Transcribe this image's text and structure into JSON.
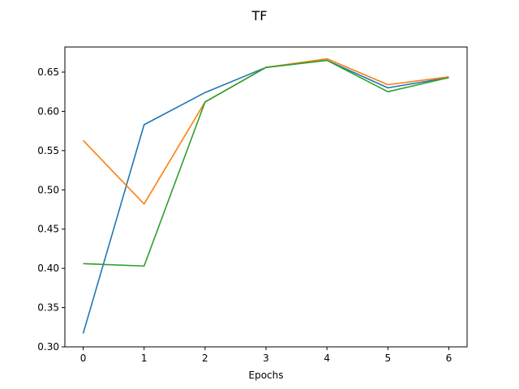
{
  "chart_data": {
    "type": "line",
    "title": "TF",
    "xlabel": "Epochs",
    "ylabel": "",
    "x": [
      0,
      1,
      2,
      3,
      4,
      5,
      6
    ],
    "xlim": [
      -0.3,
      6.3
    ],
    "ylim": [
      0.3,
      0.682
    ],
    "xticks": [
      "0",
      "1",
      "2",
      "3",
      "4",
      "5",
      "6"
    ],
    "yticks": [
      "0.30",
      "0.35",
      "0.40",
      "0.45",
      "0.50",
      "0.55",
      "0.60",
      "0.65"
    ],
    "grid": false,
    "legend": "none",
    "series": [
      {
        "color": "#1f77b4",
        "values": [
          0.317,
          0.583,
          0.624,
          0.656,
          0.665,
          0.63,
          0.643
        ]
      },
      {
        "color": "#ff7f0e",
        "values": [
          0.563,
          0.482,
          0.612,
          0.656,
          0.667,
          0.634,
          0.644
        ]
      },
      {
        "color": "#2ca02c",
        "values": [
          0.406,
          0.403,
          0.612,
          0.656,
          0.665,
          0.625,
          0.643
        ]
      }
    ]
  }
}
